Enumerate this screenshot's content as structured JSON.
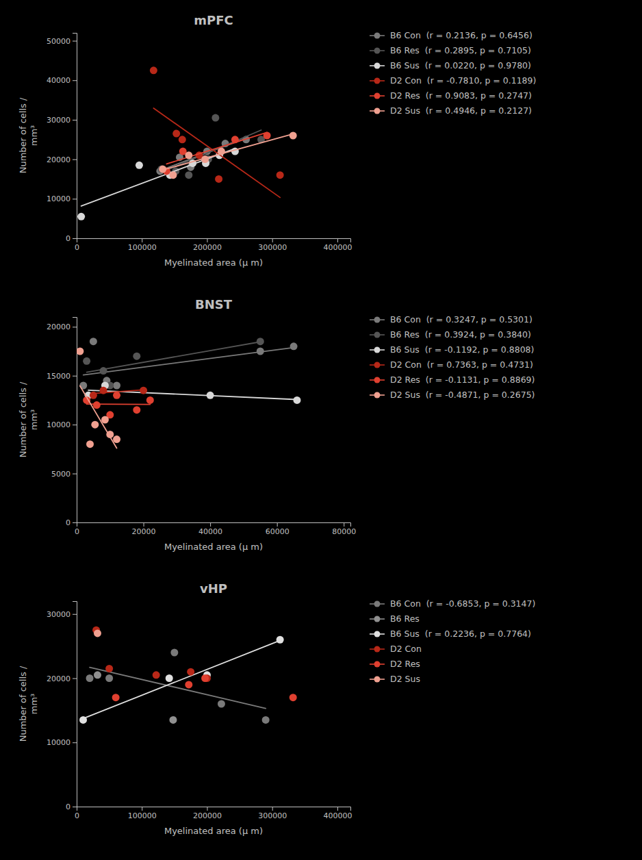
{
  "chart_data": [
    {
      "type": "scatter",
      "title": "mPFC",
      "x_label": "Myelinated area (μ m)",
      "y_label": "Number of cells /\nmm³",
      "xlim": [
        0,
        420000
      ],
      "ylim": [
        0,
        52000
      ],
      "xticks": [
        0,
        100000,
        200000,
        300000,
        400000
      ],
      "yticks": [
        0,
        10000,
        20000,
        30000,
        40000,
        50000
      ],
      "grid": false,
      "series": [
        {
          "name": "B6 Con  (r = 0.2136, p = 0.6456)",
          "color": "#7a7a7a",
          "x": [
            128000,
            158000,
            175000,
            200000,
            228000,
            260000
          ],
          "values": [
            17000,
            20500,
            18000,
            22000,
            24000,
            25000
          ],
          "fit_x": [
            128000,
            260000
          ],
          "fit_values": [
            17158,
            25317
          ]
        },
        {
          "name": "B6 Res  (r = 0.2895, p = 0.7105)",
          "color": "#555555",
          "x": [
            130000,
            152000,
            172000,
            202000,
            213000,
            283000
          ],
          "values": [
            17500,
            17000,
            16000,
            20000,
            30500,
            25000
          ],
          "fit_x": [
            130000,
            283000
          ],
          "fit_values": [
            16644,
            27394
          ]
        },
        {
          "name": "B6 Sus  (r = 0.0220, p = 0.9780)",
          "color": "#d8d8d8",
          "x": [
            96000,
            143000,
            178000,
            198000,
            219000,
            243000,
            7000
          ],
          "values": [
            18500,
            16000,
            19000,
            19000,
            21000,
            22000,
            5500
          ],
          "fit_x": [
            7000,
            243000
          ],
          "fit_values": [
            8158,
            22727
          ]
        },
        {
          "name": "D2 Con  (r = -0.7810, p = 0.1189)",
          "color": "#b82818",
          "x": [
            118000,
            153000,
            162000,
            188000,
            218000,
            312000
          ],
          "values": [
            42500,
            26500,
            25000,
            21000,
            15000,
            16000
          ],
          "fit_x": [
            118000,
            312000
          ],
          "fit_values": [
            32935,
            10334
          ]
        },
        {
          "name": "D2 Res  (r = 0.9083, p = 0.2747)",
          "color": "#e04030",
          "x": [
            138000,
            163000,
            243000,
            292000
          ],
          "values": [
            17000,
            22000,
            25000,
            26000
          ],
          "fit_x": [
            138000,
            292000
          ],
          "fit_values": [
            18815,
            26808
          ]
        },
        {
          "name": "D2 Sus  (r = 0.4946, p = 0.2127)",
          "color": "#f0a090",
          "x": [
            132000,
            148000,
            172000,
            197000,
            222000,
            332000
          ],
          "values": [
            17500,
            16000,
            21000,
            20000,
            22000,
            26000
          ],
          "fit_x": [
            132000,
            332000
          ],
          "fit_values": [
            17299,
            26402
          ]
        }
      ]
    },
    {
      "type": "scatter",
      "title": "BNST",
      "x_label": "Myelinated area (μ m)",
      "y_label": "Number of cells /\nmm³",
      "xlim": [
        0,
        82000
      ],
      "ylim": [
        0,
        21000
      ],
      "xticks": [
        0,
        20000,
        40000,
        60000,
        80000
      ],
      "yticks": [
        0,
        5000,
        10000,
        15000,
        20000
      ],
      "grid": false,
      "series": [
        {
          "name": "B6 Con  (r = 0.3247, p = 0.5301)",
          "color": "#7a7a7a",
          "x": [
            2000,
            5000,
            9000,
            12000,
            55000,
            65000
          ],
          "values": [
            14000,
            18500,
            14500,
            14000,
            17500,
            18000
          ],
          "fit_x": [
            2000,
            65000
          ],
          "fit_values": [
            15076,
            17875
          ]
        },
        {
          "name": "B6 Res  (r = 0.3924, p = 0.3840)",
          "color": "#555555",
          "x": [
            3000,
            8000,
            10000,
            18000,
            55000
          ],
          "values": [
            16500,
            15500,
            14000,
            17000,
            18500
          ],
          "fit_x": [
            3000,
            55000
          ],
          "fit_values": [
            15356,
            18462
          ]
        },
        {
          "name": "B6 Sus  (r = -0.1192, p = 0.8808)",
          "color": "#d8d8d8",
          "x": [
            3500,
            8500,
            40000,
            66000
          ],
          "values": [
            13000,
            14000,
            13000,
            12500
          ],
          "fit_x": [
            3500,
            66000
          ],
          "fit_values": [
            13524,
            12565
          ]
        },
        {
          "name": "D2 Con  (r = 0.7363, p = 0.4731)",
          "color": "#b82818",
          "x": [
            5000,
            8000,
            20000
          ],
          "values": [
            13000,
            13500,
            13500
          ],
          "fit_x": [
            5000,
            20000
          ],
          "fit_values": [
            13190,
            13548
          ]
        },
        {
          "name": "D2 Res  (r = -0.1131, p = 0.8869)",
          "color": "#e04030",
          "x": [
            3000,
            6000,
            10000,
            12000,
            18000,
            22000
          ],
          "values": [
            12500,
            12000,
            11000,
            13000,
            11500,
            12500
          ],
          "fit_x": [
            3000,
            22000
          ],
          "fit_values": [
            12098,
            12067
          ]
        },
        {
          "name": "D2 Sus  (r = -0.4871, p = 0.2675)",
          "color": "#f0a090",
          "x": [
            1000,
            4000,
            5500,
            8500,
            10000,
            12000
          ],
          "values": [
            17500,
            8000,
            10000,
            10500,
            9000,
            8500
          ],
          "fit_x": [
            1000,
            12000
          ],
          "fit_values": [
            13955,
            7597
          ]
        }
      ]
    },
    {
      "type": "scatter",
      "title": "vHP",
      "x_label": "Myelinated area (μ m)",
      "y_label": "Number of cells /\nmm³",
      "xlim": [
        0,
        420000
      ],
      "ylim": [
        0,
        32000
      ],
      "xticks": [
        0,
        100000,
        200000,
        300000,
        400000
      ],
      "yticks": [
        0,
        10000,
        20000,
        30000
      ],
      "grid": false,
      "series": [
        {
          "name": "B6 Con  (r = -0.6853, p = 0.3147)",
          "color": "#7a7a7a",
          "x": [
            20000,
            50000,
            150000,
            222000,
            290000
          ],
          "values": [
            20000,
            20000,
            24000,
            16000,
            13500
          ],
          "fit_x": [
            20000,
            290000
          ],
          "fit_values": [
            21691,
            15302
          ]
        },
        {
          "name": "B6 Res",
          "color": "#909090",
          "x": [
            32000,
            148000
          ],
          "values": [
            20500,
            13500
          ]
        },
        {
          "name": "B6 Sus  (r = 0.2236, p = 0.7764)",
          "color": "#e0e0e0",
          "x": [
            10000,
            142000,
            200000,
            312000
          ],
          "values": [
            13500,
            20000,
            20500,
            26000
          ],
          "fit_x": [
            10000,
            312000
          ],
          "fit_values": [
            13722,
            25876
          ]
        },
        {
          "name": "D2 Con",
          "color": "#b82818",
          "x": [
            30000,
            50000,
            122000,
            175000,
            200000
          ],
          "values": [
            27500,
            21500,
            20500,
            21000,
            20000
          ]
        },
        {
          "name": "D2 Res",
          "color": "#e04030",
          "x": [
            60000,
            172000,
            197000,
            332000
          ],
          "values": [
            17000,
            19000,
            20000,
            17000
          ]
        },
        {
          "name": "D2 Sus",
          "color": "#f0a090",
          "x": [
            32000
          ],
          "values": [
            27000
          ]
        }
      ]
    }
  ]
}
